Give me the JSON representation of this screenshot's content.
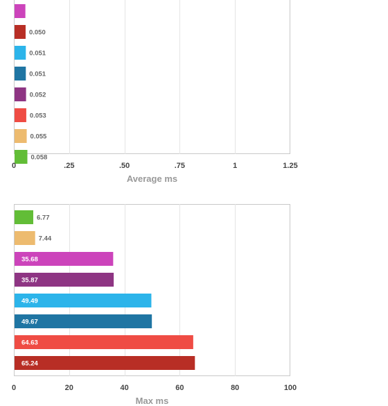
{
  "chart_data": [
    {
      "type": "bar",
      "orientation": "horizontal",
      "xlabel": "Average ms",
      "xlim": [
        0,
        1.25
      ],
      "xticks": [
        0,
        0.25,
        0.5,
        0.75,
        1,
        1.25
      ],
      "xtick_labels": [
        "0",
        ".25",
        ".50",
        ".75",
        "1",
        "1.25"
      ],
      "grid": true,
      "values": [
        0.049,
        0.05,
        0.051,
        0.051,
        0.052,
        0.053,
        0.055,
        0.058
      ],
      "labels": [
        "",
        "0.050",
        "0.051",
        "0.051",
        "0.052",
        "0.053",
        "0.055",
        "0.058"
      ],
      "colors": [
        "#cc44bb",
        "#b82e25",
        "#2cb4ea",
        "#1f75a3",
        "#8e3583",
        "#ef4c44",
        "#edbb6f",
        "#62bd37"
      ]
    },
    {
      "type": "bar",
      "orientation": "horizontal",
      "xlabel": "Max ms",
      "xlim": [
        0,
        100
      ],
      "xticks": [
        0,
        20,
        40,
        60,
        80,
        100
      ],
      "xtick_labels": [
        "0",
        "20",
        "40",
        "60",
        "80",
        "100"
      ],
      "grid": true,
      "values": [
        6.77,
        7.44,
        35.68,
        35.87,
        49.49,
        49.67,
        64.63,
        65.24
      ],
      "labels": [
        "6.77",
        "7.44",
        "35.68",
        "35.87",
        "49.49",
        "49.67",
        "64.63",
        "65.24"
      ],
      "colors": [
        "#62bd37",
        "#edbb6f",
        "#cc44bb",
        "#8e3583",
        "#2cb4ea",
        "#1f75a3",
        "#ef4c44",
        "#b82e25"
      ]
    }
  ]
}
